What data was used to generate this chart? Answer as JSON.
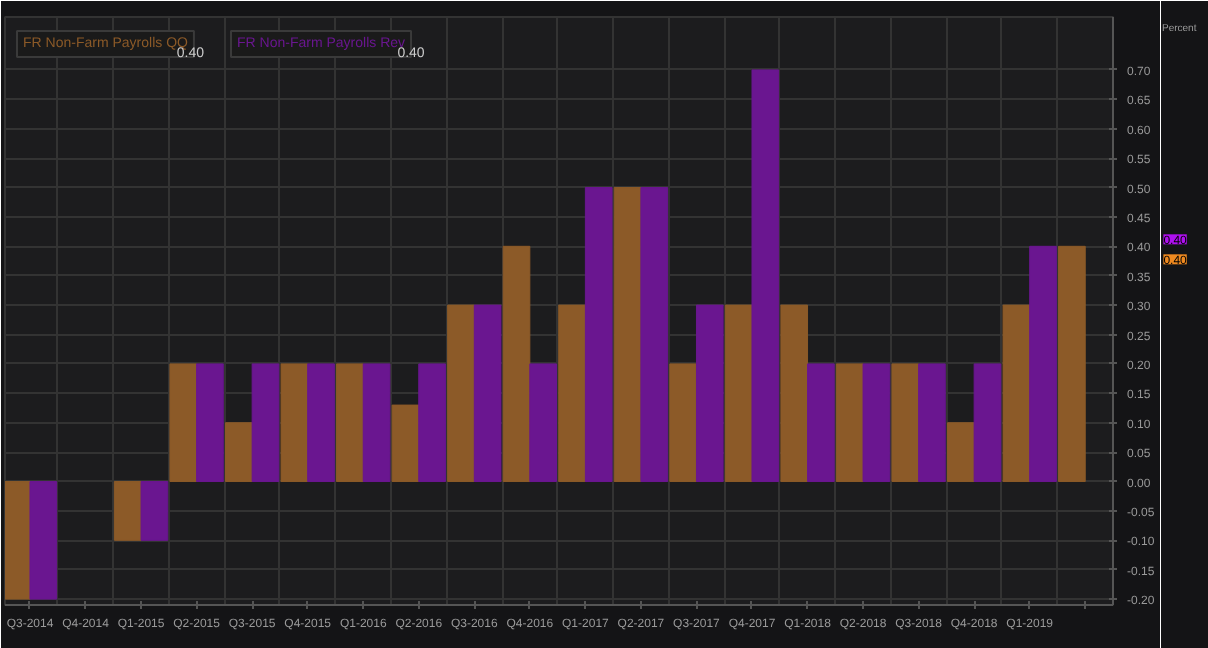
{
  "chart_data": {
    "type": "bar",
    "categories": [
      "Q3-2014",
      "Q4-2014",
      "Q1-2015",
      "Q2-2015",
      "Q3-2015",
      "Q4-2015",
      "Q1-2016",
      "Q2-2016",
      "Q3-2016",
      "Q4-2016",
      "Q1-2017",
      "Q2-2017",
      "Q3-2017",
      "Q4-2017",
      "Q1-2018",
      "Q2-2018",
      "Q3-2018",
      "Q4-2018",
      "Q1-2019",
      null
    ],
    "series": [
      {
        "name": "FR Non-Farm Payrolls QQ",
        "color": "#8c5a28",
        "values": [
          -0.2,
          null,
          -0.1,
          0.2,
          0.1,
          0.2,
          0.2,
          0.13,
          0.3,
          0.4,
          0.3,
          0.5,
          0.2,
          0.3,
          0.3,
          0.2,
          0.2,
          0.1,
          0.3,
          0.4
        ]
      },
      {
        "name": "FR Non-Farm Payrolls Rev",
        "color": "#6a1690",
        "values": [
          -0.2,
          null,
          -0.1,
          0.2,
          0.2,
          0.2,
          0.2,
          0.2,
          0.3,
          0.2,
          0.5,
          0.5,
          0.3,
          0.7,
          0.2,
          0.2,
          0.2,
          0.2,
          0.4,
          null
        ]
      }
    ],
    "annotations": [
      "0.40",
      "0.40",
      "0.40",
      "0.40",
      "Percent"
    ],
    "ylim": [
      -0.21,
      0.79
    ],
    "yticks": [
      {
        "value": -0.2,
        "label": "-0.20"
      },
      {
        "value": -0.15,
        "label": "-0.15"
      },
      {
        "value": -0.1,
        "label": "-0.10"
      },
      {
        "value": -0.05,
        "label": "-0.05"
      },
      {
        "value": 0,
        "label": "0.00"
      },
      {
        "value": 0.05,
        "label": "0.05"
      },
      {
        "value": 0.1,
        "label": "0.10"
      },
      {
        "value": 0.15,
        "label": "0.15"
      },
      {
        "value": 0.2,
        "label": "0.20"
      },
      {
        "value": 0.25,
        "label": "0.25"
      },
      {
        "value": 0.3,
        "label": "0.30"
      },
      {
        "value": 0.35,
        "label": "0.35"
      },
      {
        "value": 0.4,
        "label": "0.40"
      },
      {
        "value": 0.45,
        "label": "0.45"
      },
      {
        "value": 0.5,
        "label": "0.50"
      },
      {
        "value": 0.55,
        "label": "0.55"
      },
      {
        "value": 0.6,
        "label": "0.60"
      },
      {
        "value": 0.65,
        "label": "0.65"
      },
      {
        "value": 0.7,
        "label": "0.70"
      }
    ],
    "grid": true,
    "legend": "top left"
  }
}
